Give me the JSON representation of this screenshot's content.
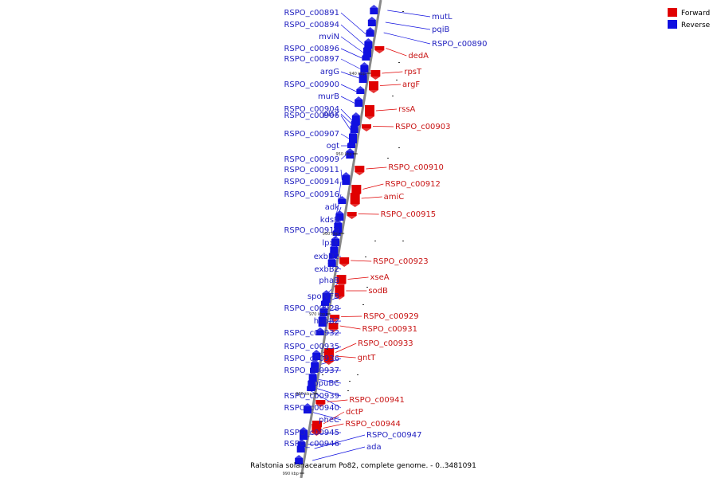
{
  "title": "Ralstonia solanacearum Po82, complete genome. - 0..3481091",
  "legend": [
    {
      "label": "Forward",
      "color": "#e00000"
    },
    {
      "label": "Reverse",
      "color": "#1010e0"
    }
  ],
  "ticks": [
    "940 kbp",
    "950 kbp",
    "960 kbp",
    "970 kbp",
    "980 kbp",
    "990 kbp"
  ],
  "colors": {
    "forward": "#e00000",
    "reverse": "#1010e0",
    "backbone": "#888888"
  },
  "reverse_genes": [
    "RSPO_c00891",
    "RSPO_c00894",
    "mviN",
    "RSPO_c00896",
    "RSPO_c00897",
    "argG",
    "RSPO_c00900",
    "murB",
    "RSPO_c00904",
    "plsY",
    "RSPO_c00906",
    "RSPO_c00907",
    "ogt",
    "RSPO_c00909",
    "RSPO_c00911",
    "RSPO_c00914",
    "RSPO_c00916",
    "adk",
    "kdsB",
    "RSPO_c00919",
    "lpxK",
    "exbD2",
    "exbB2",
    "phaB",
    "spoIVFB",
    "RSPO_c00928",
    "hupB2",
    "RSPO_c00932",
    "RSPO_c00935",
    "RSPO_c00936",
    "RSPO_c00937",
    "opuBC",
    "RSPO_c00939",
    "RSPO_c00940",
    "pheC",
    "RSPO_c00945",
    "RSPO_c00946"
  ],
  "right_reverse_genes": [
    "mutL",
    "pqiB",
    "RSPO_c00890",
    "RSPO_c00947",
    "ada"
  ],
  "forward_genes": [
    "dedA",
    "rpsT",
    "argF",
    "rssA",
    "RSPO_c00903",
    "RSPO_c00910",
    "RSPO_c00912",
    "amiC",
    "RSPO_c00915",
    "RSPO_c00923",
    "xseA",
    "sodB",
    "RSPO_c00929",
    "RSPO_c00931",
    "RSPO_c00933",
    "gntT",
    "RSPO_c00941",
    "dctP",
    "RSPO_c00944"
  ]
}
